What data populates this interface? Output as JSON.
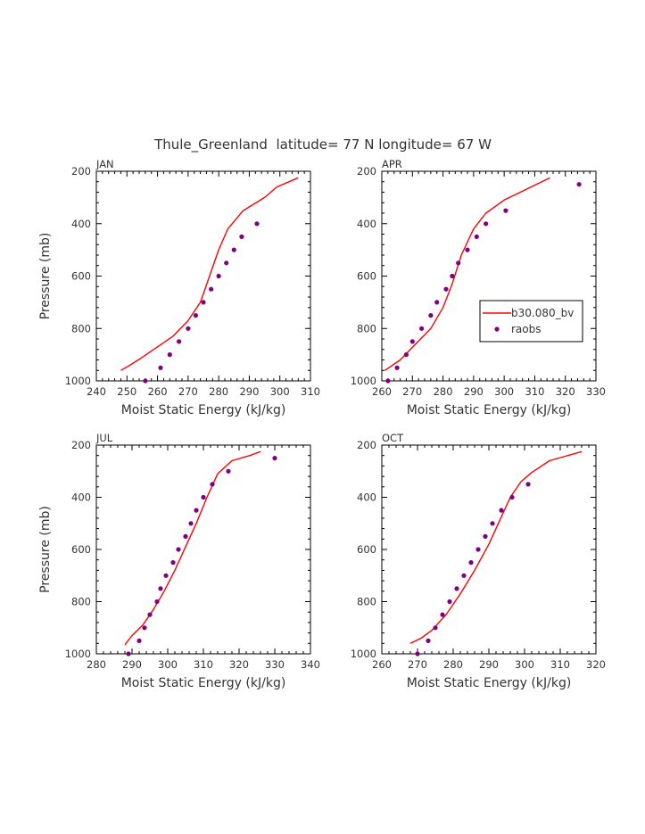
{
  "title": "Thule_Greenland  latitude= 77 N longitude= 67 W",
  "colors": {
    "model": "#ff0000",
    "obs": "#800080",
    "axis": "#000000"
  },
  "legend": {
    "model_label": "b30.080_bv",
    "obs_label": "raobs",
    "placement": "in APR panel, right-middle"
  },
  "chart_data": [
    {
      "type": "line",
      "panel": "JAN",
      "xlabel": "Moist Static Energy (kJ/kg)",
      "ylabel": "Pressure (mb)",
      "xlim": [
        240,
        310
      ],
      "xticks": [
        240,
        250,
        260,
        270,
        280,
        290,
        300,
        310
      ],
      "ylim": [
        1000,
        200
      ],
      "yticks": [
        200,
        400,
        600,
        800,
        1000
      ],
      "series": [
        {
          "name": "b30.080_bv",
          "style": "line",
          "points": [
            [
              248,
              960
            ],
            [
              251,
              940
            ],
            [
              255,
              910
            ],
            [
              260,
              870
            ],
            [
              265,
              830
            ],
            [
              270,
              770
            ],
            [
              274,
              700
            ],
            [
              277,
              600
            ],
            [
              280,
              500
            ],
            [
              283,
              420
            ],
            [
              288,
              350
            ],
            [
              295,
              300
            ],
            [
              299,
              260
            ],
            [
              306,
              225
            ]
          ]
        },
        {
          "name": "raobs",
          "style": "markers",
          "points": [
            [
              256,
              1000
            ],
            [
              261,
              950
            ],
            [
              264,
              900
            ],
            [
              267,
              850
            ],
            [
              270,
              800
            ],
            [
              272.5,
              750
            ],
            [
              275,
              700
            ],
            [
              277.5,
              650
            ],
            [
              280,
              600
            ],
            [
              282.5,
              550
            ],
            [
              285,
              500
            ],
            [
              287.5,
              450
            ],
            [
              292.5,
              400
            ]
          ]
        }
      ]
    },
    {
      "type": "line",
      "panel": "APR",
      "xlabel": "Moist Static Energy (kJ/kg)",
      "ylabel": "",
      "xlim": [
        260,
        330
      ],
      "xticks": [
        260,
        270,
        280,
        290,
        300,
        310,
        320,
        330
      ],
      "ylim": [
        1000,
        200
      ],
      "yticks": [
        200,
        400,
        600,
        800,
        1000
      ],
      "series": [
        {
          "name": "b30.080_bv",
          "style": "line",
          "points": [
            [
              261,
              960
            ],
            [
              266,
              920
            ],
            [
              271,
              860
            ],
            [
              276,
              800
            ],
            [
              280,
              720
            ],
            [
              283,
              630
            ],
            [
              286,
              520
            ],
            [
              290,
              420
            ],
            [
              294,
              360
            ],
            [
              300,
              310
            ],
            [
              307,
              270
            ],
            [
              315,
              225
            ]
          ]
        },
        {
          "name": "raobs",
          "style": "markers",
          "points": [
            [
              262,
              1000
            ],
            [
              265,
              950
            ],
            [
              268,
              900
            ],
            [
              270,
              850
            ],
            [
              273,
              800
            ],
            [
              276,
              750
            ],
            [
              278,
              700
            ],
            [
              281,
              650
            ],
            [
              283,
              600
            ],
            [
              285,
              550
            ],
            [
              288,
              500
            ],
            [
              291,
              450
            ],
            [
              294,
              400
            ],
            [
              300.5,
              350
            ],
            [
              324.5,
              250
            ]
          ]
        }
      ]
    },
    {
      "type": "line",
      "panel": "JUL",
      "xlabel": "Moist Static Energy (kJ/kg)",
      "ylabel": "Pressure (mb)",
      "xlim": [
        280,
        340
      ],
      "xticks": [
        280,
        290,
        300,
        310,
        320,
        330,
        340
      ],
      "ylim": [
        1000,
        200
      ],
      "yticks": [
        200,
        400,
        600,
        800,
        1000
      ],
      "series": [
        {
          "name": "b30.080_bv",
          "style": "line",
          "points": [
            [
              288,
              965
            ],
            [
              290,
              930
            ],
            [
              293,
              890
            ],
            [
              296,
              830
            ],
            [
              299,
              760
            ],
            [
              302,
              680
            ],
            [
              305,
              590
            ],
            [
              308,
              500
            ],
            [
              311,
              400
            ],
            [
              314,
              310
            ],
            [
              318,
              260
            ],
            [
              323,
              240
            ],
            [
              326,
              225
            ]
          ]
        },
        {
          "name": "raobs",
          "style": "markers",
          "points": [
            [
              289,
              1000
            ],
            [
              292,
              950
            ],
            [
              293.5,
              900
            ],
            [
              295,
              850
            ],
            [
              297,
              800
            ],
            [
              298,
              750
            ],
            [
              299.5,
              700
            ],
            [
              301.5,
              650
            ],
            [
              303,
              600
            ],
            [
              305,
              550
            ],
            [
              306.5,
              500
            ],
            [
              308,
              450
            ],
            [
              310,
              400
            ],
            [
              312.5,
              350
            ],
            [
              317,
              300
            ],
            [
              330,
              250
            ]
          ]
        }
      ]
    },
    {
      "type": "line",
      "panel": "OCT",
      "xlabel": "Moist Static Energy (kJ/kg)",
      "ylabel": "",
      "xlim": [
        260,
        320
      ],
      "xticks": [
        260,
        270,
        280,
        290,
        300,
        310,
        320
      ],
      "ylim": [
        1000,
        200
      ],
      "yticks": [
        200,
        400,
        600,
        800,
        1000
      ],
      "series": [
        {
          "name": "b30.080_bv",
          "style": "line",
          "points": [
            [
              268,
              960
            ],
            [
              271,
              940
            ],
            [
              274,
              910
            ],
            [
              278,
              850
            ],
            [
              282,
              770
            ],
            [
              286,
              680
            ],
            [
              290,
              580
            ],
            [
              293,
              490
            ],
            [
              296,
              400
            ],
            [
              299,
              340
            ],
            [
              302,
              305
            ],
            [
              307,
              260
            ],
            [
              316,
              225
            ]
          ]
        },
        {
          "name": "raobs",
          "style": "markers",
          "points": [
            [
              270,
              1000
            ],
            [
              273,
              950
            ],
            [
              275,
              900
            ],
            [
              277,
              850
            ],
            [
              279,
              800
            ],
            [
              281,
              750
            ],
            [
              283,
              700
            ],
            [
              285,
              650
            ],
            [
              287,
              600
            ],
            [
              289,
              550
            ],
            [
              291,
              500
            ],
            [
              293.5,
              450
            ],
            [
              296.5,
              400
            ],
            [
              301,
              350
            ]
          ]
        }
      ]
    }
  ]
}
